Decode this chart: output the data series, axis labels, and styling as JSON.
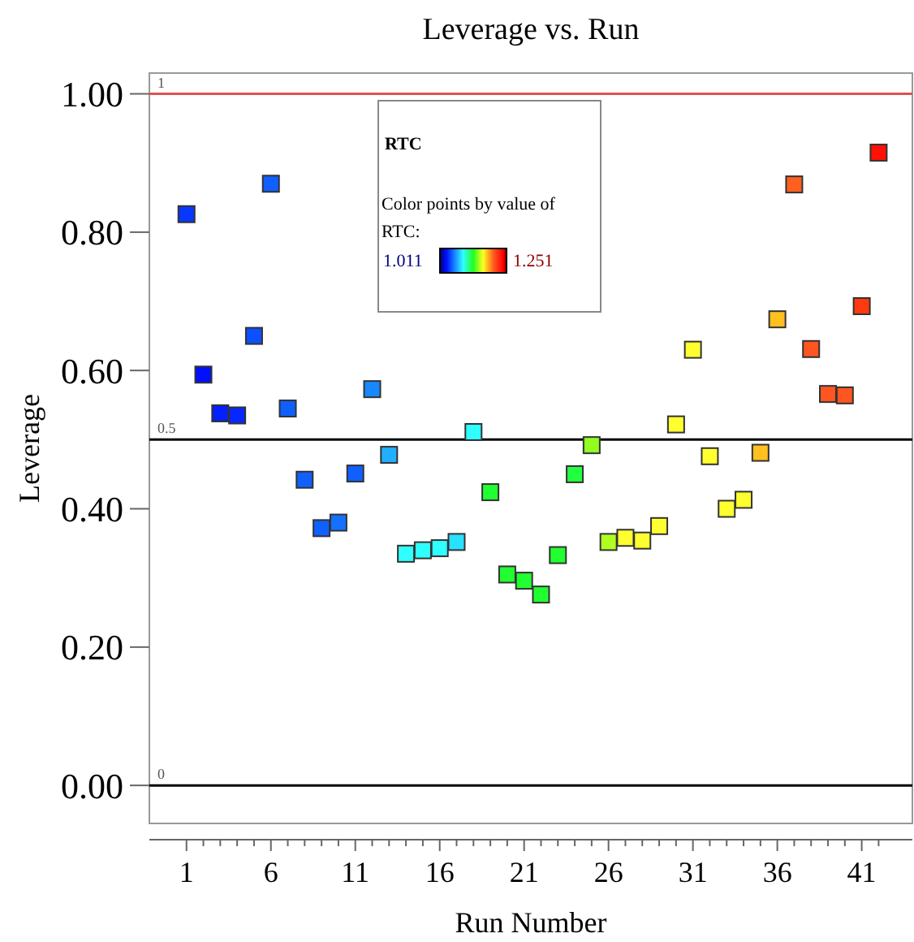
{
  "chart_data": {
    "type": "scatter",
    "title": "Leverage vs. Run",
    "xlabel": "Run Number",
    "ylabel": "Leverage",
    "annotations": [
      "RTC",
      "Color points by value of RTC:",
      "1.011",
      "1.251"
    ],
    "marker": "square",
    "grid": false,
    "xlim": [
      -1.2,
      44
    ],
    "xticks": [
      1,
      {
        "value": 2,
        "label": null
      },
      {
        "value": 3,
        "label": null
      },
      {
        "value": 4,
        "label": null
      },
      {
        "value": 5,
        "label": null
      },
      6,
      {
        "value": 7,
        "label": null
      },
      {
        "value": 8,
        "label": null
      },
      {
        "value": 9,
        "label": null
      },
      {
        "value": 10,
        "label": null
      },
      11,
      {
        "value": 12,
        "label": null
      },
      {
        "value": 13,
        "label": null
      },
      {
        "value": 14,
        "label": null
      },
      {
        "value": 15,
        "label": null
      },
      16,
      {
        "value": 17,
        "label": null
      },
      {
        "value": 18,
        "label": null
      },
      {
        "value": 19,
        "label": null
      },
      {
        "value": 20,
        "label": null
      },
      21,
      {
        "value": 22,
        "label": null
      },
      {
        "value": 23,
        "label": null
      },
      {
        "value": 24,
        "label": null
      },
      {
        "value": 25,
        "label": null
      },
      26,
      {
        "value": 27,
        "label": null
      },
      {
        "value": 28,
        "label": null
      },
      {
        "value": 29,
        "label": null
      },
      {
        "value": 30,
        "label": null
      },
      31,
      {
        "value": 32,
        "label": null
      },
      {
        "value": 33,
        "label": null
      },
      {
        "value": 34,
        "label": null
      },
      {
        "value": 35,
        "label": null
      },
      36,
      {
        "value": 37,
        "label": null
      },
      {
        "value": 38,
        "label": null
      },
      {
        "value": 39,
        "label": null
      },
      {
        "value": 40,
        "label": null
      },
      41,
      {
        "value": 42,
        "label": null
      }
    ],
    "ylim": [
      -0.055,
      1.03
    ],
    "yticks": [
      {
        "value": 0,
        "label": "0.00"
      },
      {
        "value": 0.2,
        "label": "0.20"
      },
      {
        "value": 0.4,
        "label": "0.40"
      },
      {
        "value": 0.6,
        "label": "0.60"
      },
      {
        "value": 0.8,
        "label": "0.80"
      },
      {
        "value": 1,
        "label": "1.00"
      }
    ],
    "ref_lines": [
      {
        "axis": "y",
        "value": 1,
        "label": "1",
        "color": "#e05050"
      },
      {
        "axis": "y",
        "value": 0.5,
        "label": "0.5",
        "color": "#000000"
      },
      {
        "axis": "y",
        "value": 0,
        "label": "0",
        "color": "#000000"
      }
    ],
    "x": [
      1,
      2,
      3,
      4,
      5,
      6,
      7,
      8,
      9,
      10,
      11,
      12,
      13,
      14,
      15,
      16,
      17,
      18,
      19,
      20,
      21,
      22,
      23,
      24,
      25,
      26,
      27,
      28,
      29,
      30,
      31,
      32,
      33,
      34,
      35,
      36,
      37,
      38,
      39,
      40,
      41,
      42
    ],
    "values": [
      0.826,
      0.594,
      0.538,
      0.535,
      0.65,
      0.87,
      0.545,
      0.442,
      0.372,
      0.38,
      0.451,
      0.573,
      0.478,
      0.335,
      0.34,
      0.343,
      0.352,
      0.511,
      0.424,
      0.305,
      0.296,
      0.276,
      0.333,
      0.45,
      0.492,
      0.352,
      0.358,
      0.354,
      0.375,
      0.522,
      0.63,
      0.476,
      0.4,
      0.413,
      0.481,
      0.674,
      0.869,
      0.631,
      0.566,
      0.564,
      0.693,
      0.915
    ],
    "colors": [
      "#0838ff",
      "#0010ff",
      "#0420ff",
      "#0428ff",
      "#0c50ff",
      "#1060ff",
      "#1060ff",
      "#1060ff",
      "#1060ff",
      "#1470ff",
      "#1060ff",
      "#1888ff",
      "#20b0ff",
      "#30ffff",
      "#30ffff",
      "#30ffff",
      "#2ae0ff",
      "#30ffff",
      "#22ff30",
      "#22ff30",
      "#22ff30",
      "#22ff30",
      "#22ff30",
      "#22ff40",
      "#90ff20",
      "#b0ff20",
      "#ffff30",
      "#ffff30",
      "#ffff30",
      "#ffff30",
      "#ffff30",
      "#ffff30",
      "#ffff30",
      "#ffff30",
      "#ffc020",
      "#ffc020",
      "#ff6020",
      "#ff5520",
      "#ff5520",
      "#ff5520",
      "#ff3a10",
      "#ff1005"
    ]
  }
}
